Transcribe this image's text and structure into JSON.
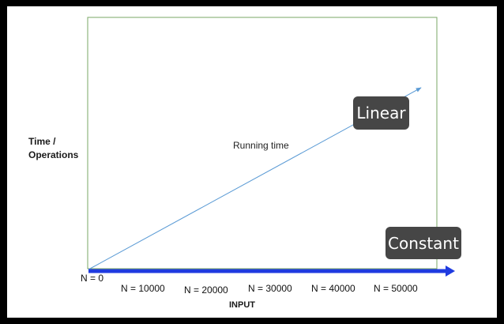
{
  "y_axis_label": [
    "Time /",
    "Operations"
  ],
  "x_axis_label": "INPUT",
  "origin_label": "N = 0",
  "x_ticks": [
    "N = 10000",
    "N = 20000",
    "N = 30000",
    "N = 40000",
    "N = 50000"
  ],
  "line_label": "Running time",
  "badges": {
    "linear": "Linear",
    "constant": "Constant"
  },
  "colors": {
    "frame": "#7aa765",
    "running_time_line": "#5b9bd5",
    "input_axis": "#1f3be0",
    "badge_bg": "#464646",
    "badge_text": "#ffffff"
  }
}
